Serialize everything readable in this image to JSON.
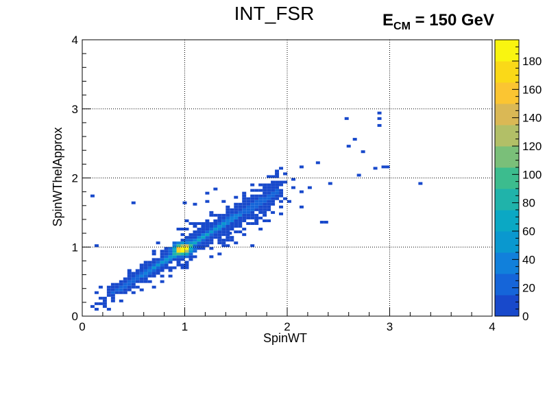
{
  "chart_data": {
    "type": "heatmap",
    "title": "INT_FSR",
    "annotation": {
      "prefix": "E",
      "subscript": "CM",
      "suffix": " = 150 GeV"
    },
    "xlabel": "SpinWT",
    "ylabel": "SpinWThelApprox",
    "xlim": [
      0,
      4
    ],
    "ylim": [
      0,
      4
    ],
    "xticks": [
      "0",
      "1",
      "2",
      "3",
      "4"
    ],
    "yticks": [
      "0",
      "1",
      "2",
      "3",
      "4"
    ],
    "grid": true,
    "colorbar": {
      "min": 0,
      "max": 195,
      "ticks": [
        "0",
        "20",
        "40",
        "60",
        "80",
        "100",
        "120",
        "140",
        "160",
        "180"
      ],
      "colors": [
        "#1849cb",
        "#1565d9",
        "#1180db",
        "#0a98cf",
        "#0ba8c4",
        "#20b3aa",
        "#3cbc8e",
        "#7abf79",
        "#b2bf67",
        "#dab855",
        "#fbc532",
        "#fad918",
        "#f9f510"
      ]
    },
    "bin_width": 0.04,
    "description": "Two-dimensional histogram, strong correlation along diagonal, peak near (1.0, 0.97)",
    "peak": {
      "x": 0.98,
      "y": 0.97,
      "value": 195
    },
    "outliers": [
      [
        0.1,
        1.74
      ],
      [
        0.14,
        1.02
      ],
      [
        0.5,
        1.64
      ],
      [
        1.0,
        1.64
      ],
      [
        1.1,
        1.62
      ],
      [
        1.22,
        1.78
      ],
      [
        1.3,
        1.84
      ],
      [
        1.44,
        1.2
      ],
      [
        1.46,
        1.26
      ],
      [
        1.5,
        1.72
      ],
      [
        1.94,
        1.48
      ],
      [
        2.02,
        1.66
      ],
      [
        2.06,
        1.86
      ],
      [
        2.06,
        1.98
      ],
      [
        2.14,
        1.58
      ],
      [
        2.14,
        1.8
      ],
      [
        2.14,
        2.16
      ],
      [
        2.22,
        1.86
      ],
      [
        2.3,
        2.22
      ],
      [
        2.34,
        1.36
      ],
      [
        2.38,
        1.36
      ],
      [
        2.42,
        1.92
      ],
      [
        2.58,
        2.86
      ],
      [
        2.6,
        2.46
      ],
      [
        2.66,
        2.56
      ],
      [
        2.7,
        2.04
      ],
      [
        2.74,
        2.38
      ],
      [
        2.86,
        2.14
      ],
      [
        2.9,
        2.76
      ],
      [
        2.9,
        2.86
      ],
      [
        2.9,
        2.94
      ],
      [
        2.94,
        2.16
      ],
      [
        2.98,
        2.16
      ],
      [
        3.3,
        1.92
      ]
    ]
  }
}
